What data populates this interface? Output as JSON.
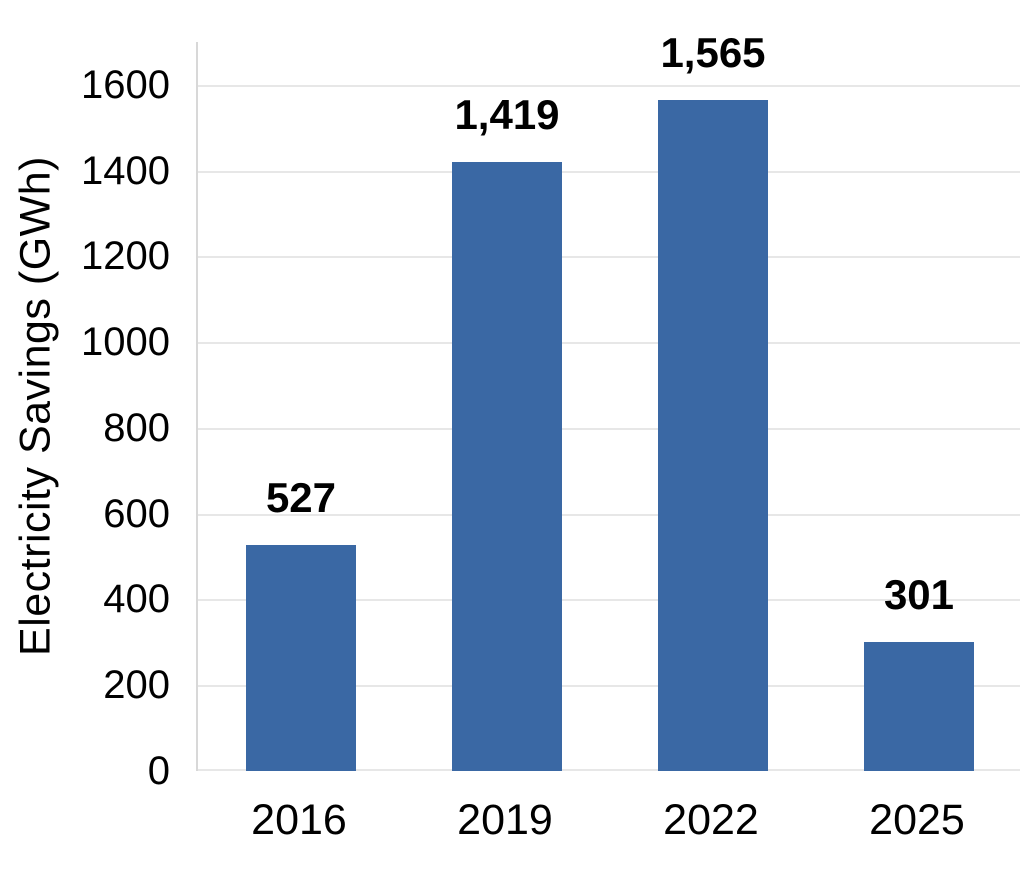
{
  "chart_data": {
    "type": "bar",
    "title": "",
    "xlabel": "",
    "ylabel": "Electricity Savings (GWh)",
    "categories": [
      "2016",
      "2019",
      "2022",
      "2025"
    ],
    "values": [
      527,
      1419,
      1565,
      301
    ],
    "value_labels": [
      "527",
      "1,419",
      "1,565",
      "301"
    ],
    "ylim": [
      0,
      1700
    ],
    "yticks": {
      "values": [
        0,
        200,
        400,
        600,
        800,
        1000,
        1200,
        1400,
        1600
      ],
      "labels": [
        "0",
        "200",
        "400",
        "600",
        "800",
        "1000",
        "1200",
        "1400",
        "1600"
      ]
    },
    "grid": "horizontal-only",
    "legend": "none",
    "colors": {
      "bar": "#3A68A4",
      "gridline": "#E7E7E7",
      "axis_line": "#D8D8D8",
      "text": "#000000"
    }
  }
}
